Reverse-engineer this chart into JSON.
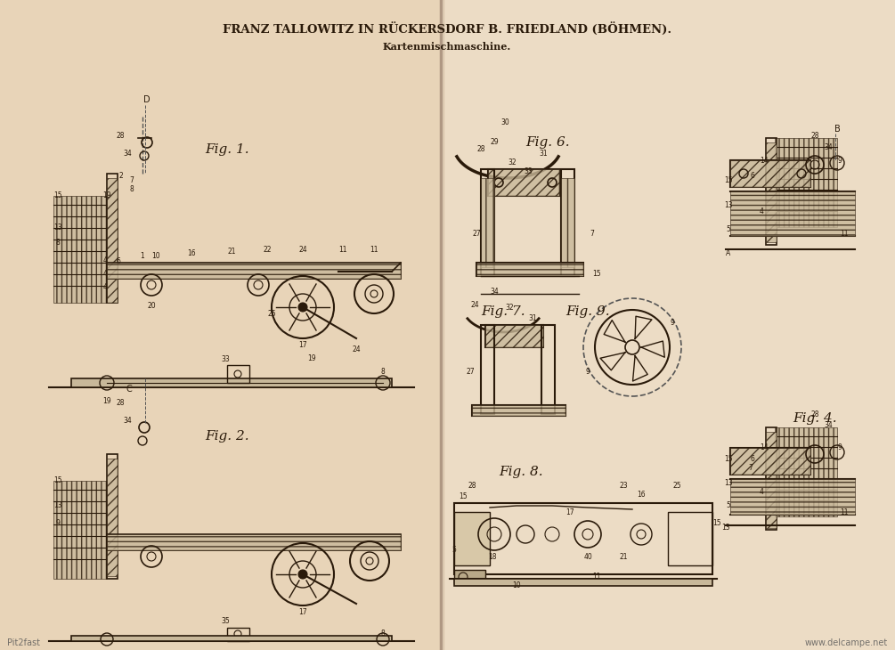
{
  "background_color": "#f0dfc8",
  "line_color": "#2a1a0a",
  "title_line1": "FRANZ TALLOWITZ IN RÜCKERSDORF B. FRIEDLAND (BÖHMEN).",
  "title_line2": "Kartenmischmaschine.",
  "watermark_left": "Pit2fast",
  "watermark_right": "www.delcampe.net",
  "left_bg": "#e8d4b8",
  "right_bg": "#ecdcc5"
}
